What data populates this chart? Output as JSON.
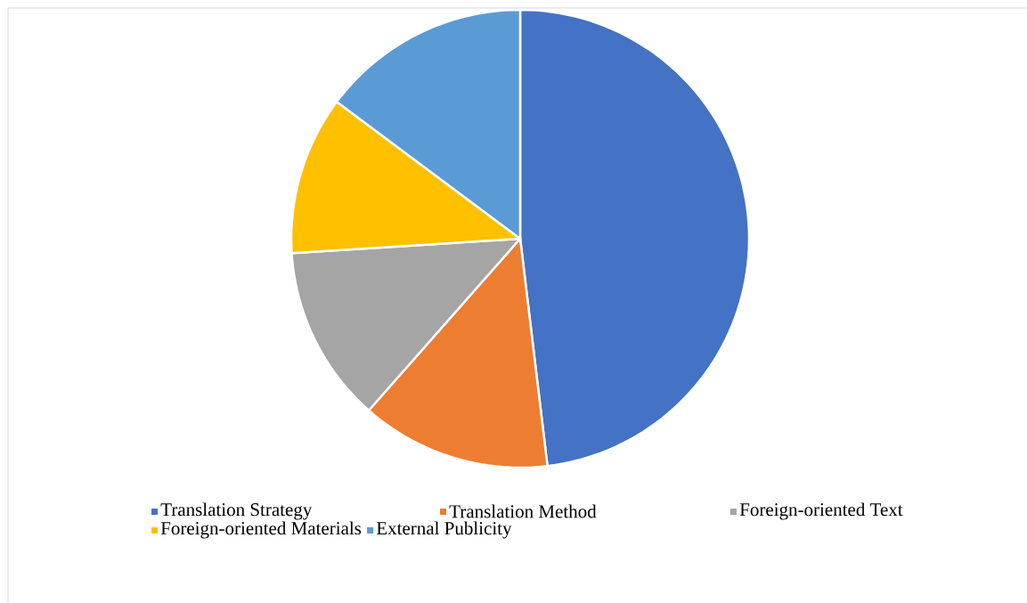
{
  "chart_data": {
    "type": "pie",
    "categories": [
      "Translation Strategy",
      "Translation Method",
      "Foreign-oriented Text",
      "Foreign-oriented Materials",
      "External Publicity"
    ],
    "values": [
      48.1,
      13.4,
      12.5,
      11.2,
      14.8
    ],
    "colors": [
      "#4472c4",
      "#ed7d31",
      "#a5a5a5",
      "#ffc000",
      "#5b9bd5"
    ],
    "legend": "bottom"
  }
}
